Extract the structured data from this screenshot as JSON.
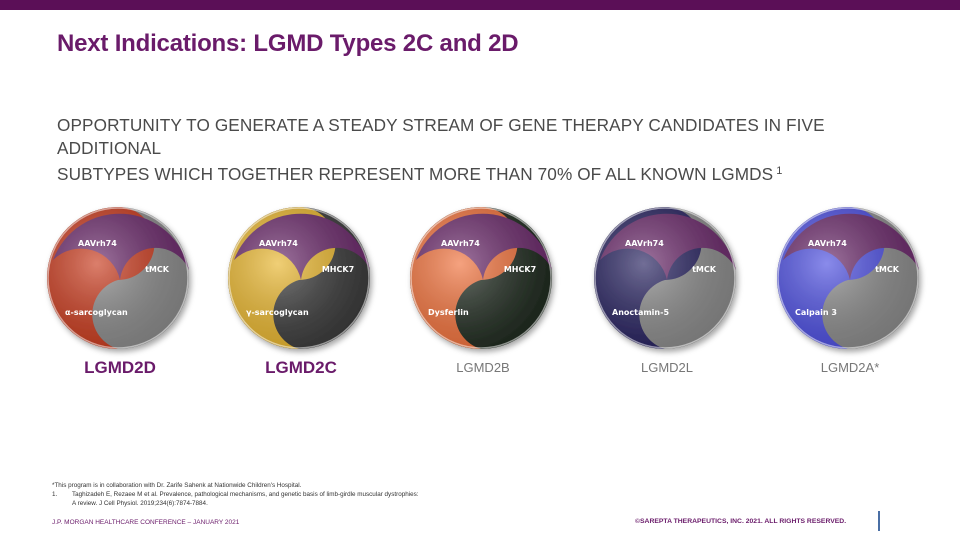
{
  "header": {
    "title": "Next Indications: LGMD Types 2C and 2D",
    "subtitle_line1": "OPPORTUNITY TO GENERATE A STEADY STREAM OF GENE THERAPY CANDIDATES IN FIVE ADDITIONAL",
    "subtitle_line2": "SUBTYPES WHICH TOGETHER REPRESENT MORE THAN 70% OF ALL KNOWN LGMDS",
    "subtitle_sup": "1"
  },
  "candidates": [
    {
      "vector": "AAVrh74",
      "promoter": "tMCK",
      "transgene": "α-sarcoglycan",
      "name": "LGMD2D",
      "highlight": true,
      "colors": {
        "top": "#6b2a6b",
        "left": "#c8391c",
        "right": "#8a8a8a"
      }
    },
    {
      "vector": "AAVrh74",
      "promoter": "MHCK7",
      "transgene": "γ-sarcoglycan",
      "name": "LGMD2C",
      "highlight": true,
      "colors": {
        "top": "#6b2a6b",
        "left": "#e8b52c",
        "right": "#3a3a3a"
      }
    },
    {
      "vector": "AAVrh74",
      "promoter": "MHCK7",
      "transgene": "Dysferlin",
      "name": "LGMD2B",
      "highlight": false,
      "colors": {
        "top": "#6b2a6b",
        "left": "#f0703a",
        "right": "#1f2a1f"
      }
    },
    {
      "vector": "AAVrh74",
      "promoter": "tMCK",
      "transgene": "Anoctamin-5",
      "name": "LGMD2L",
      "highlight": false,
      "colors": {
        "top": "#6b2a6b",
        "left": "#25205e",
        "right": "#8a8a8a"
      }
    },
    {
      "vector": "AAVrh74",
      "promoter": "tMCK",
      "transgene": "Calpain 3",
      "name": "LGMD2A*",
      "highlight": false,
      "colors": {
        "top": "#6b2a6b",
        "left": "#4b4de0",
        "right": "#8a8a8a"
      }
    }
  ],
  "footnotes": {
    "star": "*This program is in collaboration with Dr. Zarife Sahenk at Nationwide Children's Hospital.",
    "ref_num": "1.",
    "ref_line1": "Taghizadeh E, Rezaee M  et al. Prevalence, pathological mechanisms, and genetic basis of limb-girdle muscular dystrophies:",
    "ref_line2": "A review.  J Cell Physiol. 2019;234(6):7874-7884."
  },
  "footer": {
    "conference": "J.P. MORGAN HEALTHCARE CONFERENCE – JANUARY 2021",
    "copyright": "©SAREPTA THERAPEUTICS, INC. 2021.  ALL RIGHTS RESERVED."
  },
  "colors": {
    "brand": "#6a1b6a",
    "topbar": "#5b0f57"
  }
}
